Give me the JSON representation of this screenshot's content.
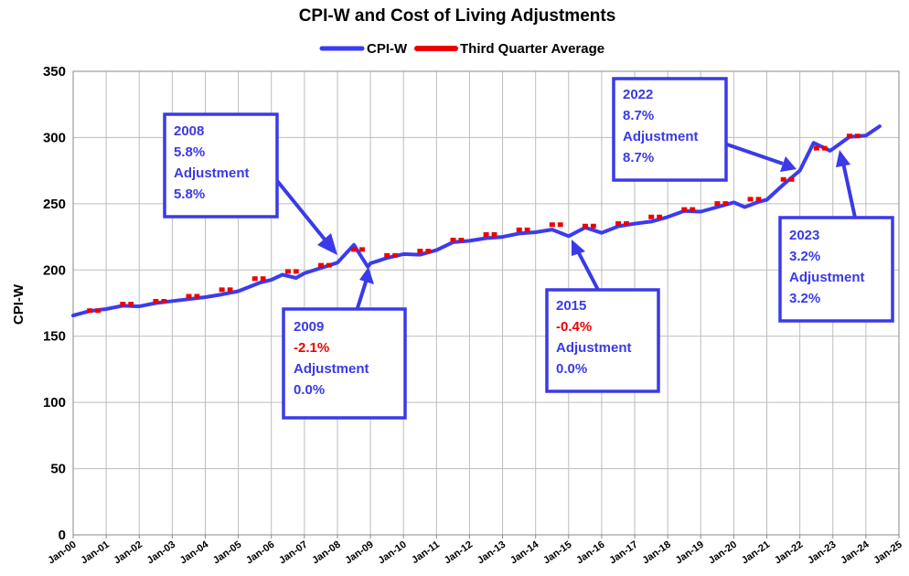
{
  "colors": {
    "cpi": "#3b3bf0",
    "tqa": "#ee0000",
    "annotation": "#3a3ae8",
    "negative": "#ee0000",
    "grid": "#bdbdbd"
  },
  "legend": [
    "CPI-W",
    "Third Quarter Average"
  ],
  "chart_data": {
    "type": "line",
    "title": "CPI-W and Cost of Living Adjustments",
    "xlabel": "",
    "ylabel": "CPI-W",
    "ylim": [
      0,
      350
    ],
    "yticks": [
      0,
      50,
      100,
      150,
      200,
      250,
      300,
      350
    ],
    "xlim": [
      "Jan-00",
      "Jan-25"
    ],
    "xticks": [
      "Jan-00",
      "Jan-01",
      "Jan-02",
      "Jan-03",
      "Jan-04",
      "Jan-05",
      "Jan-06",
      "Jan-07",
      "Jan-08",
      "Jan-09",
      "Jan-10",
      "Jan-11",
      "Jan-12",
      "Jan-13",
      "Jan-14",
      "Jan-15",
      "Jan-16",
      "Jan-17",
      "Jan-18",
      "Jan-19",
      "Jan-20",
      "Jan-21",
      "Jan-22",
      "Jan-23",
      "Jan-24",
      "Jan-25"
    ],
    "grid": true,
    "legend_position": "top",
    "series": [
      {
        "name": "CPI-W",
        "x": [
          "2000-01",
          "2000-07",
          "2001-01",
          "2001-07",
          "2002-01",
          "2002-07",
          "2003-01",
          "2003-07",
          "2004-01",
          "2004-07",
          "2005-01",
          "2005-09",
          "2006-01",
          "2006-05",
          "2006-10",
          "2007-01",
          "2007-07",
          "2008-01",
          "2008-07",
          "2008-12",
          "2009-01",
          "2009-07",
          "2010-01",
          "2010-07",
          "2011-01",
          "2011-07",
          "2012-01",
          "2012-07",
          "2013-01",
          "2013-07",
          "2014-01",
          "2014-07",
          "2015-01",
          "2015-07",
          "2016-01",
          "2016-07",
          "2017-01",
          "2017-07",
          "2018-01",
          "2018-07",
          "2019-01",
          "2019-07",
          "2020-01",
          "2020-05",
          "2020-10",
          "2021-01",
          "2021-07",
          "2022-01",
          "2022-06",
          "2022-12",
          "2023-07",
          "2024-01",
          "2024-06"
        ],
        "values": [
          165.6,
          169.0,
          170.5,
          173.0,
          172.5,
          175.0,
          176.5,
          178.0,
          179.5,
          181.5,
          184.0,
          190.5,
          192.5,
          196.5,
          194.0,
          197.5,
          201.5,
          205.5,
          219.0,
          202.5,
          205.0,
          209.0,
          212.0,
          211.5,
          215.0,
          221.0,
          222.0,
          224.0,
          225.0,
          227.5,
          228.5,
          230.5,
          225.5,
          232.0,
          228.0,
          233.0,
          235.0,
          236.5,
          240.0,
          244.5,
          244.0,
          247.5,
          251.0,
          247.5,
          251.5,
          253.0,
          264.5,
          275.0,
          296.0,
          290.0,
          300.5,
          301.5,
          308.5
        ]
      },
      {
        "name": "Third Quarter Average",
        "x": [
          2000,
          2001,
          2002,
          2003,
          2004,
          2005,
          2006,
          2007,
          2008,
          2009,
          2010,
          2011,
          2012,
          2013,
          2014,
          2015,
          2016,
          2017,
          2018,
          2019,
          2020,
          2021,
          2022,
          2023
        ],
        "values": [
          169.3,
          174.2,
          176.4,
          180.2,
          185.1,
          193.5,
          198.9,
          203.6,
          215.5,
          211.0,
          214.3,
          222.6,
          226.8,
          230.3,
          234.2,
          233.2,
          235.1,
          240.1,
          245.7,
          250.2,
          253.4,
          268.4,
          291.9,
          301.2
        ]
      }
    ]
  },
  "annotations": [
    {
      "year": "2008",
      "cpi": "5.8%",
      "label": "Adjustment",
      "adj": "5.8%"
    },
    {
      "year": "2009",
      "cpi": "-2.1%",
      "label": "Adjustment",
      "adj": "0.0%"
    },
    {
      "year": "2015",
      "cpi": "-0.4%",
      "label": "Adjustment",
      "adj": "0.0%"
    },
    {
      "year": "2022",
      "cpi": "8.7%",
      "label": "Adjustment",
      "adj": "8.7%"
    },
    {
      "year": "2023",
      "cpi": "3.2%",
      "label": "Adjustment",
      "adj": "3.2%"
    }
  ]
}
